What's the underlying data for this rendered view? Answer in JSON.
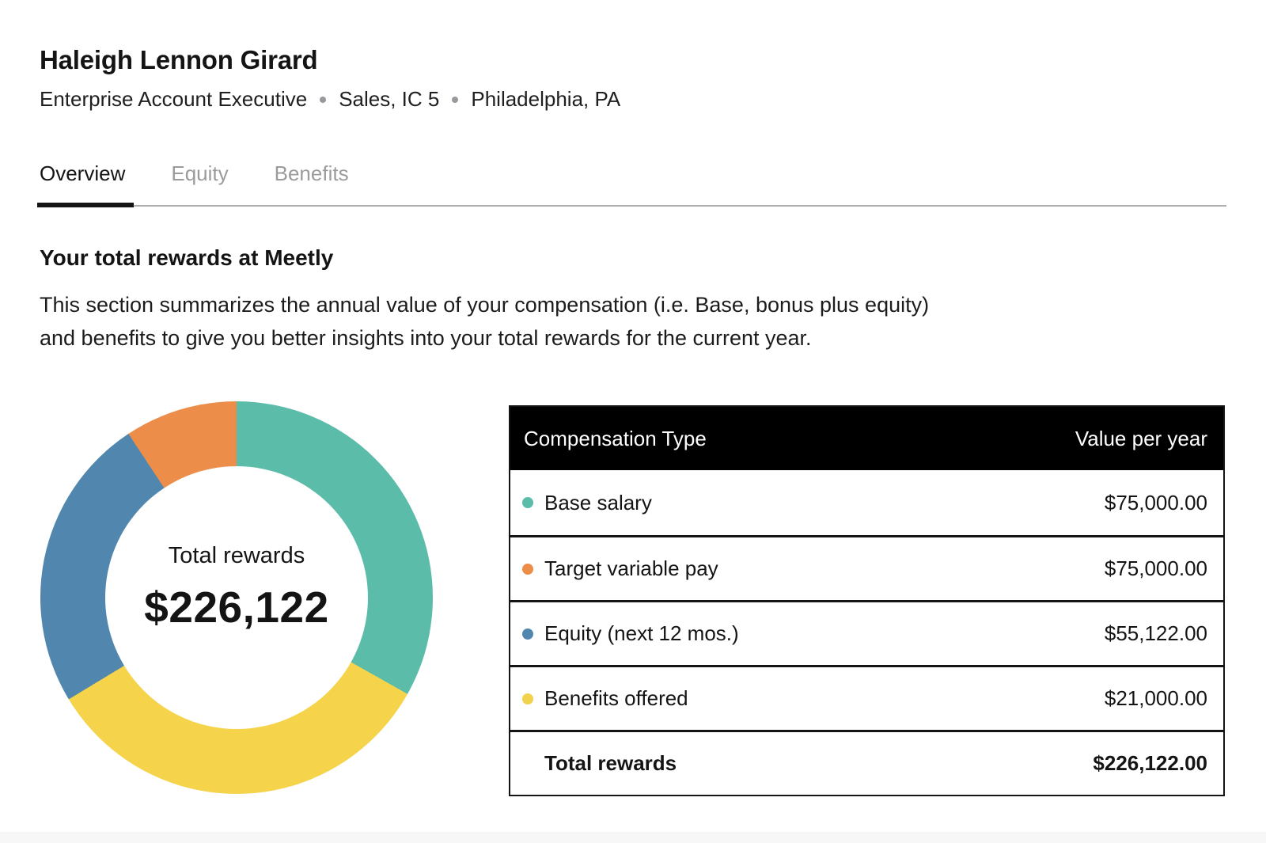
{
  "employee": {
    "name": "Haleigh Lennon Girard",
    "role": "Enterprise Account Executive",
    "org_level": "Sales, IC 5",
    "location": "Philadelphia, PA"
  },
  "tabs": [
    {
      "label": "Overview",
      "active": true
    },
    {
      "label": "Equity",
      "active": false
    },
    {
      "label": "Benefits",
      "active": false
    }
  ],
  "section": {
    "title": "Your total rewards at Meetly",
    "description_lines": [
      "This section summarizes the annual value of your compensation (i.e. Base, bonus plus equity)",
      "and benefits to give you better insights into your total rewards for the current year."
    ]
  },
  "chart_data": {
    "type": "pie",
    "donut": true,
    "direction": "clockwise",
    "start_angle_deg": 0,
    "center_label": "Total rewards",
    "center_value": "$226,122",
    "total": 226122,
    "slices": [
      {
        "name": "Base salary",
        "value": 75000,
        "color": "#5CBCAA"
      },
      {
        "name": "Target variable pay",
        "value": 75000,
        "color": "#F5D34B"
      },
      {
        "name": "Equity (next 12 mos.)",
        "value": 55122,
        "color": "#5187AE"
      },
      {
        "name": "Benefits offered",
        "value": 21000,
        "color": "#EC8D4A"
      }
    ]
  },
  "table": {
    "columns": {
      "type": "Compensation Type",
      "value": "Value per year"
    },
    "rows": [
      {
        "label": "Base salary",
        "value": "$75,000.00",
        "dot_color": "#5CBCAA"
      },
      {
        "label": "Target variable pay",
        "value": "$75,000.00",
        "dot_color": "#EC8D4A"
      },
      {
        "label": "Equity (next 12 mos.)",
        "value": "$55,122.00",
        "dot_color": "#5187AE"
      },
      {
        "label": "Benefits offered",
        "value": "$21,000.00",
        "dot_color": "#F2D14C"
      }
    ],
    "total_row": {
      "label": "Total rewards",
      "value": "$226,122.00"
    }
  }
}
